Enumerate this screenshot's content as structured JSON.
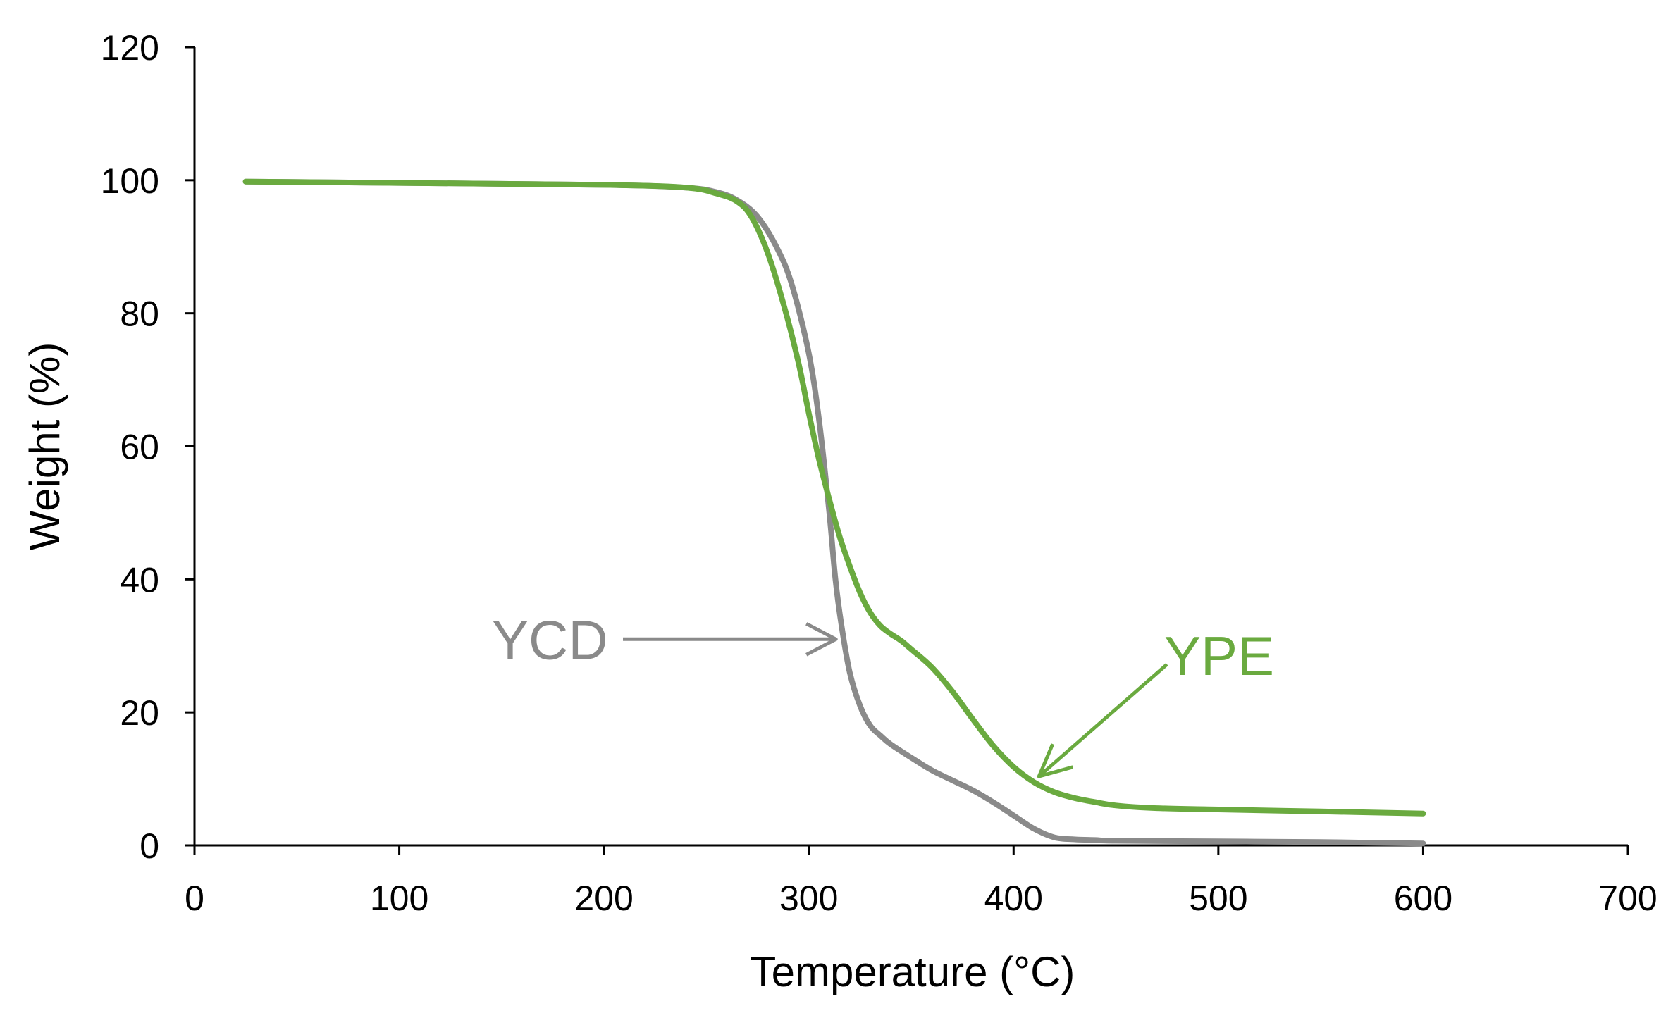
{
  "colors": {
    "ycd": "#8a8a8a",
    "ype": "#6aaa3f",
    "axis": "#000000"
  },
  "chart_data": {
    "type": "line",
    "title": "",
    "xlabel": "Temperature  (°C)",
    "ylabel": "Weight (%)",
    "xlim": [
      0,
      700
    ],
    "ylim": [
      0,
      120
    ],
    "x_ticks": [
      0,
      100,
      200,
      300,
      400,
      500,
      600,
      700
    ],
    "y_ticks": [
      0,
      20,
      40,
      60,
      80,
      100,
      120
    ],
    "x_tick_labels": [
      "0",
      "100",
      "200",
      "300",
      "400",
      "500",
      "600",
      "700"
    ],
    "y_tick_labels": [
      "0",
      "20",
      "40",
      "60",
      "80",
      "100",
      "120"
    ],
    "grid": false,
    "legend": "none",
    "series": [
      {
        "name": "YCD",
        "color": "#8a8a8a",
        "x": [
          25,
          100,
          200,
          240,
          255,
          265,
          275,
          285,
          292,
          300,
          305,
          310,
          313,
          316,
          320,
          325,
          330,
          335,
          340,
          350,
          360,
          370,
          380,
          390,
          400,
          410,
          420,
          430,
          440,
          450,
          500,
          550,
          600
        ],
        "y": [
          99.8,
          99.6,
          99.3,
          98.9,
          98.2,
          97.0,
          94.5,
          89.5,
          84.0,
          74.0,
          64.0,
          50.0,
          40.0,
          33.0,
          26.0,
          21.0,
          18.0,
          16.5,
          15.2,
          13.2,
          11.3,
          9.8,
          8.3,
          6.5,
          4.5,
          2.5,
          1.2,
          0.9,
          0.8,
          0.7,
          0.6,
          0.5,
          0.3
        ]
      },
      {
        "name": "YPE",
        "color": "#6aaa3f",
        "x": [
          25,
          100,
          200,
          240,
          255,
          265,
          272,
          280,
          288,
          295,
          300,
          305,
          310,
          315,
          320,
          325,
          330,
          335,
          340,
          345,
          350,
          360,
          370,
          380,
          390,
          400,
          410,
          420,
          430,
          440,
          450,
          470,
          500,
          550,
          600
        ],
        "y": [
          99.8,
          99.6,
          99.3,
          98.9,
          98.0,
          96.8,
          94.5,
          89.0,
          81.0,
          72.5,
          65.0,
          58.0,
          52.0,
          46.5,
          42.0,
          38.0,
          35.0,
          33.0,
          31.8,
          30.8,
          29.5,
          26.8,
          23.2,
          19.0,
          15.0,
          11.8,
          9.5,
          8.0,
          7.1,
          6.5,
          6.0,
          5.6,
          5.4,
          5.1,
          4.8
        ]
      }
    ],
    "annotations": [
      {
        "text": "YCD",
        "color": "#8a8a8a",
        "target": [
          316,
          31
        ]
      },
      {
        "text": "YPE",
        "color": "#6aaa3f",
        "target": [
          411,
          11
        ]
      }
    ]
  }
}
